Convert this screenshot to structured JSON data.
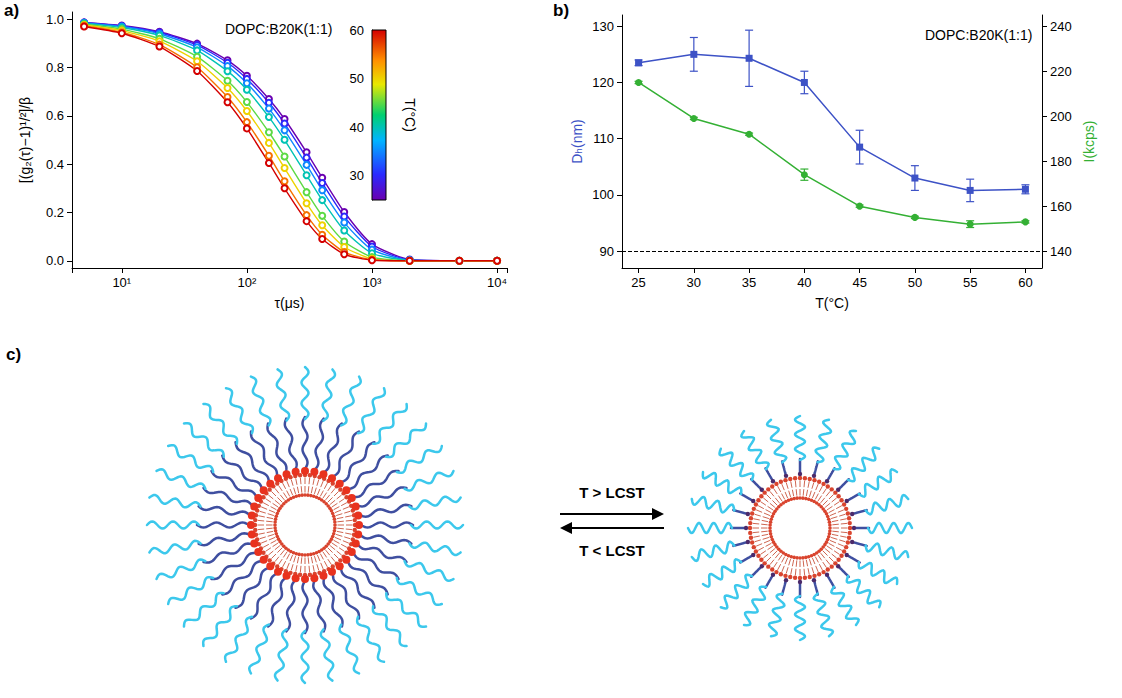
{
  "chart_data": [
    {
      "panel": "a)",
      "type": "line",
      "x_label": "τ(μs)",
      "y_label": "[(g₂(τ)−1)¹/²]/β",
      "annotations": [
        "DOPC:B20K(1:1)"
      ],
      "log": "x",
      "grid": false,
      "marker": "open_circle",
      "line_style": "solid",
      "x": [
        5,
        10,
        20,
        40,
        70,
        100,
        150,
        200,
        300,
        400,
        600,
        1000,
        2000,
        5000,
        10000
      ],
      "series": [
        {
          "temperature": 25,
          "values": [
            0.987,
            0.974,
            0.948,
            0.899,
            0.83,
            0.766,
            0.67,
            0.587,
            0.449,
            0.344,
            0.202,
            0.069,
            0.005,
            0,
            0
          ]
        },
        {
          "temperature": 30,
          "values": [
            0.986,
            0.972,
            0.945,
            0.893,
            0.82,
            0.753,
            0.654,
            0.568,
            0.427,
            0.322,
            0.183,
            0.059,
            0.003,
            0,
            0
          ]
        },
        {
          "temperature": 35,
          "values": [
            0.985,
            0.97,
            0.94,
            0.884,
            0.806,
            0.735,
            0.63,
            0.54,
            0.397,
            0.292,
            0.158,
            0.046,
            0.002,
            0,
            0
          ]
        },
        {
          "temperature": 40,
          "values": [
            0.983,
            0.966,
            0.933,
            0.871,
            0.785,
            0.708,
            0.595,
            0.501,
            0.354,
            0.251,
            0.125,
            0.031,
            0.001,
            0,
            0
          ]
        },
        {
          "temperature": 45,
          "values": [
            0.979,
            0.959,
            0.919,
            0.845,
            0.745,
            0.657,
            0.532,
            0.432,
            0.284,
            0.186,
            0.08,
            0.015,
            0,
            0,
            0
          ]
        },
        {
          "temperature": 50,
          "values": [
            0.976,
            0.953,
            0.909,
            0.826,
            0.715,
            0.62,
            0.488,
            0.384,
            0.238,
            0.147,
            0.057,
            0.008,
            0,
            0,
            0
          ]
        },
        {
          "temperature": 55,
          "values": [
            0.973,
            0.946,
            0.895,
            0.801,
            0.678,
            0.574,
            0.435,
            0.329,
            0.189,
            0.108,
            0.036,
            0.004,
            0,
            0,
            0
          ]
        },
        {
          "temperature": 60,
          "values": [
            0.97,
            0.942,
            0.887,
            0.786,
            0.656,
            0.548,
            0.405,
            0.3,
            0.164,
            0.09,
            0.027,
            0.002,
            0,
            0,
            0
          ]
        }
      ],
      "xlim": [
        4,
        12000
      ],
      "xticks": [
        {
          "value": 10,
          "label": "10¹"
        },
        {
          "value": 100,
          "label": "10²"
        },
        {
          "value": 1000,
          "label": "10³"
        },
        {
          "value": 10000,
          "label": "10⁴"
        }
      ],
      "ylim": [
        -0.03,
        1.03
      ],
      "yticks": [
        {
          "value": 0,
          "label": "0.0"
        },
        {
          "value": 0.2,
          "label": "0.2"
        },
        {
          "value": 0.4,
          "label": "0.4"
        },
        {
          "value": 0.6,
          "label": "0.6"
        },
        {
          "value": 0.8,
          "label": "0.8"
        },
        {
          "value": 1,
          "label": "1.0"
        }
      ],
      "colorbar": {
        "label": "T(°C)",
        "range": [
          25,
          60
        ],
        "ticks": [
          30,
          40,
          50,
          60
        ]
      }
    },
    {
      "panel": "b)",
      "type": "line",
      "x_label": "T(°C)",
      "y_label": "Dₕ(nm)",
      "y2_label": "I(kcps)",
      "annotations": [
        "DOPC:B20K(1:1)"
      ],
      "grid": false,
      "line_style": "solid",
      "x": [
        25,
        30,
        35,
        40,
        45,
        50,
        55,
        60
      ],
      "series": [
        {
          "color": "#3d52c6",
          "marker": "square",
          "values": [
            123.5,
            125,
            124.3,
            120,
            108.5,
            103,
            100.8,
            101
          ],
          "errors": [
            0.5,
            3,
            5,
            2,
            3,
            2.2,
            2,
            0.8
          ]
        },
        {
          "color": "#34b034",
          "marker": "circle",
          "axis": "y2",
          "values": [
            215,
            199,
            192,
            174,
            160,
            155,
            152,
            153
          ],
          "errors": [
            0.5,
            0.5,
            0.5,
            2.5,
            0.5,
            0.5,
            1.5,
            0.5
          ]
        }
      ],
      "hline": {
        "y": 90,
        "line_style": "dashed"
      },
      "xlim": [
        23.5,
        61.5
      ],
      "xticks": [
        25,
        30,
        35,
        40,
        45,
        50,
        55,
        60
      ],
      "ylim": [
        87,
        132
      ],
      "yticks": [
        90,
        100,
        110,
        120,
        130
      ],
      "y2lim": [
        132.5,
        245
      ],
      "y2ticks": [
        140,
        160,
        180,
        200,
        220,
        240
      ]
    }
  ],
  "diagram": {
    "panel": "c)",
    "forward_label": "T > LCST",
    "reverse_label": "T < LCST"
  }
}
